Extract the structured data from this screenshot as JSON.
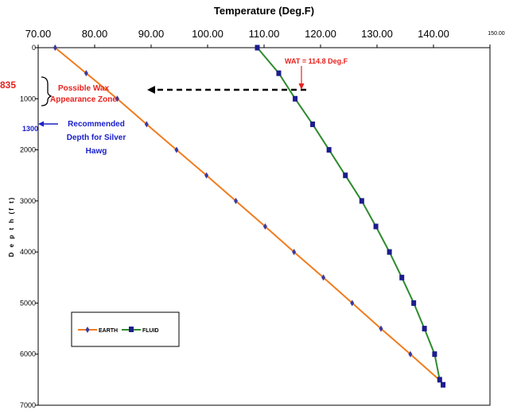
{
  "chart_data": {
    "type": "line",
    "title": "Temperature (Deg.F)",
    "xlabel": "Temperature (Deg.F)",
    "ylabel": "D e p t h   (f t)",
    "xlim": [
      70,
      150
    ],
    "ylim": [
      0,
      7000
    ],
    "y_inverted": true,
    "x_axis_position": "top",
    "grid": false,
    "legend_position": "bottom-left",
    "x_ticks": [
      "70.00",
      "80.00",
      "90.00",
      "100.00",
      "110.00",
      "120.00",
      "130.00",
      "140.00",
      "150.00"
    ],
    "y_ticks": [
      "0",
      "1000",
      "2000",
      "3000",
      "4000",
      "5000",
      "6000",
      "7000"
    ],
    "series": [
      {
        "name": "EARTH",
        "color": "#f07c1e",
        "marker_color": "#3a3aa0",
        "marker": "diamond",
        "points": [
          [
            73.0,
            0
          ],
          [
            78.5,
            500
          ],
          [
            84.0,
            1000
          ],
          [
            89.2,
            1500
          ],
          [
            94.5,
            2000
          ],
          [
            99.8,
            2500
          ],
          [
            105.0,
            3000
          ],
          [
            110.2,
            3500
          ],
          [
            115.3,
            4000
          ],
          [
            120.5,
            4500
          ],
          [
            125.6,
            5000
          ],
          [
            130.7,
            5500
          ],
          [
            135.9,
            6000
          ],
          [
            141.0,
            6500
          ]
        ]
      },
      {
        "name": "FLUID",
        "color": "#2e8b2e",
        "marker_color": "#1c1c8c",
        "marker": "square",
        "points": [
          [
            108.8,
            0
          ],
          [
            112.6,
            500
          ],
          [
            115.5,
            1000
          ],
          [
            118.6,
            1500
          ],
          [
            121.5,
            2000
          ],
          [
            124.4,
            2500
          ],
          [
            127.3,
            3000
          ],
          [
            129.8,
            3500
          ],
          [
            132.2,
            4000
          ],
          [
            134.4,
            4500
          ],
          [
            136.5,
            5000
          ],
          [
            138.4,
            5500
          ],
          [
            140.2,
            6000
          ],
          [
            141.1,
            6500
          ],
          [
            141.7,
            6600
          ]
        ]
      }
    ],
    "annotations": {
      "wat": "WAT = 114.8 Deg.F",
      "depth_835": "835",
      "wax_zone_line1": "Possible Wax",
      "wax_zone_line2": "Appearance Zone",
      "depth_1300": "1300",
      "rec_line1": "Recommended",
      "rec_line2": "Depth for Silver",
      "rec_line3": "Hawg"
    }
  }
}
